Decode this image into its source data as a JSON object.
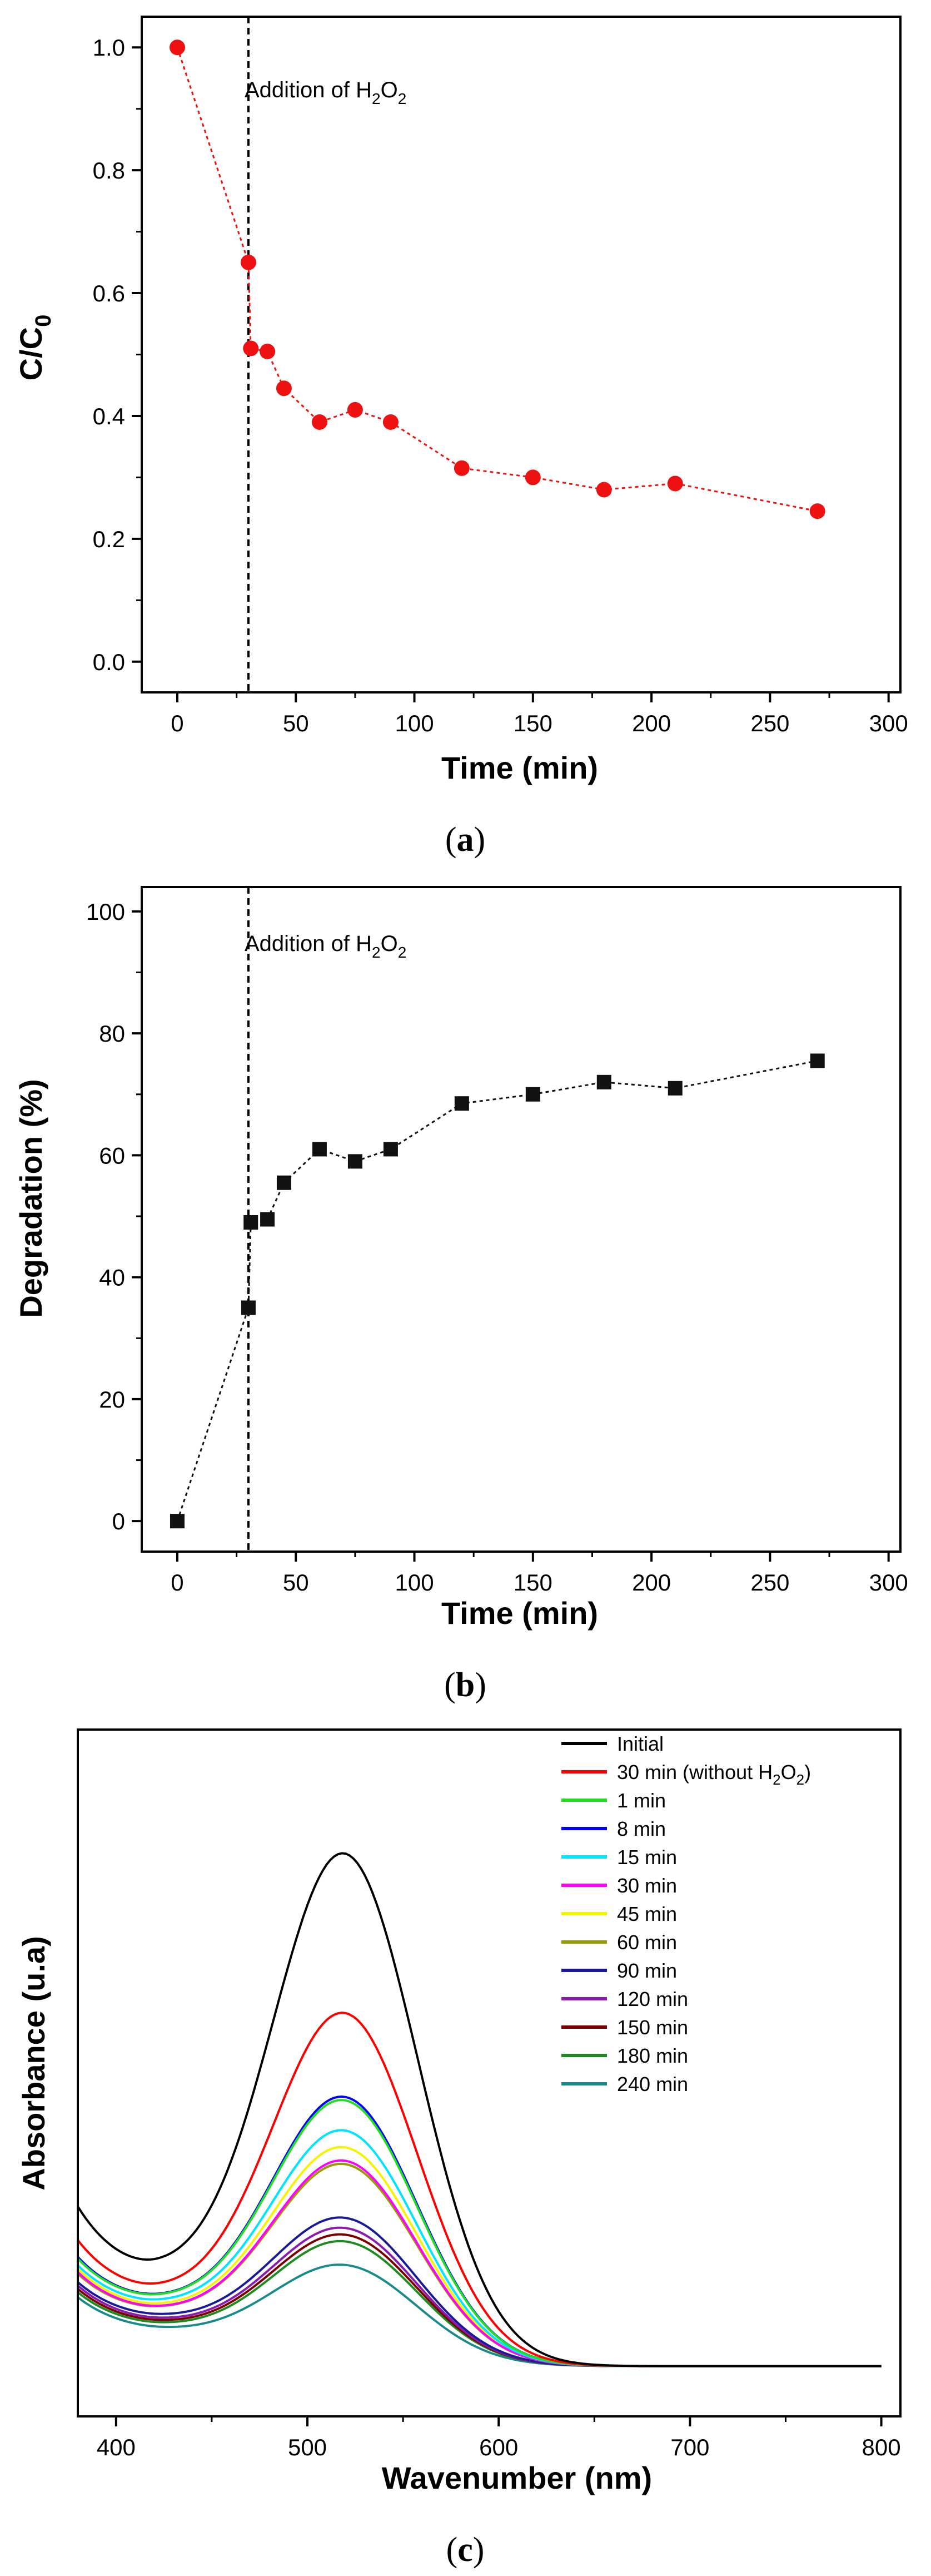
{
  "colors": {
    "panel_a_marker": "#ee1111",
    "panel_b_marker": "#111111"
  },
  "chart_data": [
    {
      "id": "a",
      "type": "line",
      "caption_label": "a",
      "xlabel": "Time (min)",
      "ylabel_main": "C/C",
      "ylabel_sub": "0",
      "xlim": [
        -15,
        305
      ],
      "ylim": [
        -0.05,
        1.05
      ],
      "xticks": [
        0,
        50,
        100,
        150,
        200,
        250,
        300
      ],
      "yticks": [
        0.0,
        0.2,
        0.4,
        0.6,
        0.8,
        1.0
      ],
      "ytick_labels": [
        "0.0",
        "0.2",
        "0.4",
        "0.6",
        "0.8",
        "1.0"
      ],
      "marker": "circle",
      "line_style": "dotted",
      "series": [
        {
          "name": "C/C0",
          "x": [
            0,
            30,
            31,
            38,
            45,
            60,
            75,
            90,
            120,
            150,
            180,
            210,
            270
          ],
          "y": [
            1.0,
            0.65,
            0.51,
            0.505,
            0.445,
            0.39,
            0.41,
            0.39,
            0.315,
            0.3,
            0.28,
            0.29,
            0.245
          ]
        }
      ],
      "vline": {
        "x": 30,
        "label_main": "Addition of H",
        "label_sub1": "2",
        "label_mid": "O",
        "label_sub2": "2"
      }
    },
    {
      "id": "b",
      "type": "line",
      "caption_label": "b",
      "xlabel": "Time (min)",
      "ylabel_main": "Degradation (%)",
      "xlim": [
        -15,
        305
      ],
      "ylim": [
        -5,
        104
      ],
      "xticks": [
        0,
        50,
        100,
        150,
        200,
        250,
        300
      ],
      "yticks": [
        0,
        20,
        40,
        60,
        80,
        100
      ],
      "ytick_labels": [
        "0",
        "20",
        "40",
        "60",
        "80",
        "100"
      ],
      "marker": "square",
      "line_style": "dotted",
      "series": [
        {
          "name": "Degradation",
          "x": [
            0,
            30,
            31,
            38,
            45,
            60,
            75,
            90,
            120,
            150,
            180,
            210,
            270
          ],
          "y": [
            0,
            35,
            49,
            49.5,
            55.5,
            61,
            59,
            61,
            68.5,
            70,
            72,
            71,
            75.5
          ]
        }
      ],
      "vline": {
        "x": 30,
        "label_main": "Addition of H",
        "label_sub1": "2",
        "label_mid": "O",
        "label_sub2": "2"
      }
    },
    {
      "id": "c",
      "type": "line",
      "caption_label": "c",
      "xlabel": "Wavenumber (nm)",
      "ylabel_main": "Absorbance (u.a)",
      "xlim": [
        380,
        810
      ],
      "ylim": [
        -0.3,
        3.8
      ],
      "xticks": [
        400,
        500,
        600,
        700,
        800
      ],
      "yticks": [],
      "profile": {
        "baseline": 0.0,
        "peak_center": 520,
        "peak_sigma": 38,
        "trough_center": 422,
        "trough_sigma": 36,
        "uv_tail_scale": 28
      },
      "series": [
        {
          "name": "Initial",
          "color": "#000000",
          "peak": 3.05,
          "trough": 0.42,
          "start": 0.95
        },
        {
          "name": "30 min (without H2O2)",
          "label_main": "30 min (without H",
          "label_sub1": "2",
          "label_mid": "O",
          "label_sub2": "2",
          "label_end": ")",
          "color": "#ff0000",
          "peak": 2.1,
          "trough": 0.33,
          "start": 0.75
        },
        {
          "name": "1 min",
          "color": "#22dd22",
          "peak": 1.58,
          "trough": 0.3,
          "start": 0.64
        },
        {
          "name": "8 min",
          "color": "#0000ff",
          "peak": 1.6,
          "trough": 0.3,
          "start": 0.65
        },
        {
          "name": "15 min",
          "color": "#00e5ff",
          "peak": 1.4,
          "trough": 0.28,
          "start": 0.6
        },
        {
          "name": "30 min",
          "color": "#ff00ff",
          "peak": 1.22,
          "trough": 0.25,
          "start": 0.56
        },
        {
          "name": "45 min",
          "color": "#f4f400",
          "peak": 1.3,
          "trough": 0.26,
          "start": 0.58
        },
        {
          "name": "60 min",
          "color": "#999900",
          "peak": 1.2,
          "trough": 0.25,
          "start": 0.55
        },
        {
          "name": "90 min",
          "color": "#1a1a99",
          "peak": 0.88,
          "trough": 0.22,
          "start": 0.5
        },
        {
          "name": "120 min",
          "color": "#8a1ab0",
          "peak": 0.82,
          "trough": 0.2,
          "start": 0.48
        },
        {
          "name": "150 min",
          "color": "#7a0000",
          "peak": 0.78,
          "trough": 0.19,
          "start": 0.46
        },
        {
          "name": "180 min",
          "color": "#1f8a1f",
          "peak": 0.74,
          "trough": 0.18,
          "start": 0.44
        },
        {
          "name": "240 min",
          "color": "#1a8a8a",
          "peak": 0.6,
          "trough": 0.16,
          "start": 0.41
        }
      ]
    }
  ]
}
